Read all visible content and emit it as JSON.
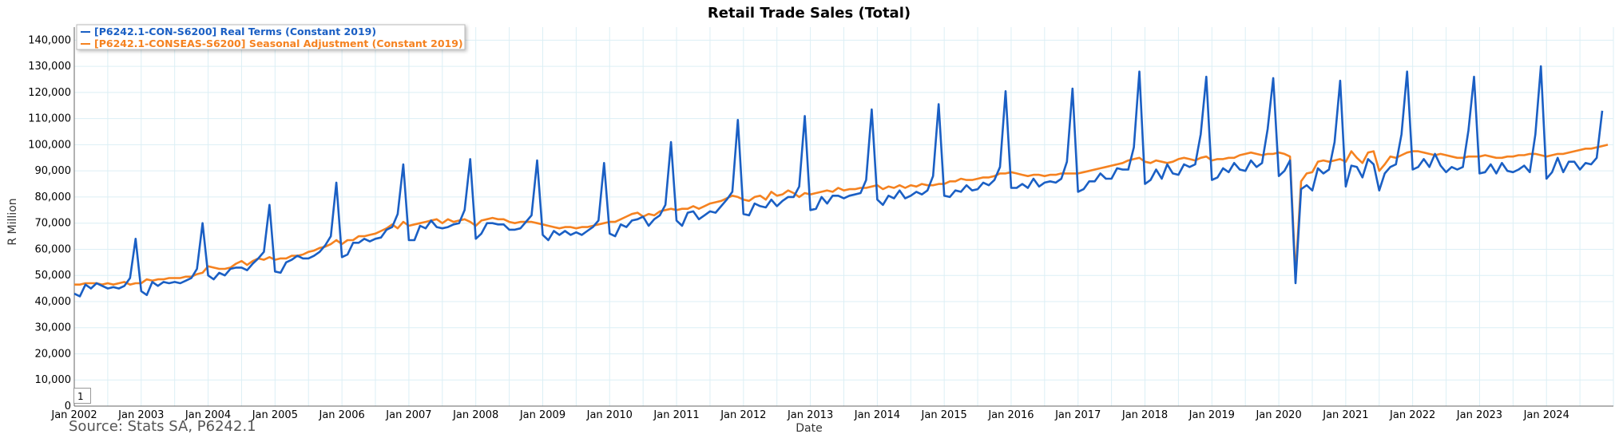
{
  "colors": {
    "series1": "#1a5fc4",
    "series2": "#f58220",
    "grid": "#dceff5"
  },
  "source_text": "Source: Stats SA, P6242.1",
  "page_input_value": "1",
  "chart_data": {
    "type": "line",
    "title": "Retail Trade Sales (Total)",
    "xlabel": "Date",
    "ylabel": "R Million",
    "ylim": [
      0,
      145000
    ],
    "yticks": [
      0,
      10000,
      20000,
      30000,
      40000,
      50000,
      60000,
      70000,
      80000,
      90000,
      100000,
      110000,
      120000,
      130000,
      140000
    ],
    "ytick_labels": [
      "0",
      "10,000",
      "20,000",
      "30,000",
      "40,000",
      "50,000",
      "60,000",
      "70,000",
      "80,000",
      "90,000",
      "100,000",
      "110,000",
      "120,000",
      "130,000",
      "140,000"
    ],
    "x_start": "2002-01",
    "x_end": "2025-01",
    "xtick_labels": [
      "Jan 2002",
      "Jan 2003",
      "Jan 2004",
      "Jan 2005",
      "Jan 2006",
      "Jan 2007",
      "Jan 2008",
      "Jan 2009",
      "Jan 2010",
      "Jan 2011",
      "Jan 2012",
      "Jan 2013",
      "Jan 2014",
      "Jan 2015",
      "Jan 2016",
      "Jan 2017",
      "Jan 2018",
      "Jan 2019",
      "Jan 2020",
      "Jan 2021",
      "Jan 2022",
      "Jan 2023",
      "Jan 2024"
    ],
    "grid": true,
    "legend_position": "top-left",
    "series": [
      {
        "name": "[P6242.1-CON-S6200] Real Terms (Constant 2019)",
        "color_key": "series1",
        "yearly_peak_dec": [
          64000,
          70000,
          77000,
          85500,
          92500,
          94500,
          94000,
          93000,
          101000,
          109500,
          111000,
          113500,
          115500,
          120500,
          121500,
          128000,
          126000,
          125500,
          124500,
          128000,
          126000,
          130000
        ],
        "values": [
          [
            43000,
            42000,
            46500,
            45000,
            47000,
            46000,
            45000,
            45500,
            45000,
            46000,
            49000,
            64000
          ],
          [
            44000,
            42500,
            47500,
            46000,
            47500,
            47000,
            47500,
            47000,
            48000,
            49000,
            52500,
            70000
          ],
          [
            50000,
            48500,
            51000,
            50000,
            52500,
            53000,
            53000,
            52000,
            54500,
            56500,
            59000,
            77000
          ],
          [
            51500,
            51000,
            55000,
            56000,
            57500,
            56500,
            56500,
            57500,
            59000,
            61500,
            65000,
            85500
          ],
          [
            57000,
            58000,
            62500,
            62500,
            64000,
            63000,
            64000,
            64500,
            67500,
            68500,
            73500,
            92500
          ],
          [
            63500,
            63500,
            69000,
            68000,
            71000,
            68500,
            68000,
            68500,
            69500,
            70000,
            75000,
            94500
          ],
          [
            64000,
            66000,
            70000,
            70000,
            69500,
            69500,
            67500,
            67500,
            68000,
            70500,
            73000,
            94000
          ],
          [
            65500,
            63500,
            67000,
            65500,
            67000,
            65500,
            66500,
            65500,
            67000,
            68500,
            71000,
            93000
          ],
          [
            66000,
            65000,
            69500,
            68500,
            71000,
            71500,
            72500,
            69000,
            71500,
            73000,
            77000,
            101000
          ],
          [
            71000,
            69000,
            74000,
            74500,
            71500,
            73000,
            74500,
            74000,
            76500,
            79000,
            82000,
            109500
          ],
          [
            73500,
            73000,
            77500,
            76500,
            76000,
            79000,
            76500,
            78500,
            80000,
            80000,
            84000,
            111000
          ],
          [
            75000,
            75500,
            80000,
            77500,
            80500,
            80500,
            79500,
            80500,
            81000,
            81500,
            86500,
            113500
          ],
          [
            79000,
            77000,
            80500,
            79500,
            82500,
            79500,
            80500,
            82000,
            81000,
            82500,
            88000,
            115500
          ],
          [
            80500,
            80000,
            82500,
            82000,
            84500,
            82500,
            83000,
            85500,
            84500,
            86500,
            91500,
            120500
          ],
          [
            83500,
            83500,
            85000,
            83500,
            87000,
            84000,
            85500,
            86000,
            85500,
            87000,
            93500,
            121500
          ],
          [
            82000,
            83000,
            86000,
            86000,
            89000,
            87000,
            87000,
            91000,
            90500,
            90500,
            99000,
            128000
          ],
          [
            85000,
            86500,
            90500,
            87000,
            92500,
            89000,
            88500,
            92500,
            91500,
            92500,
            104000,
            126000
          ],
          [
            86500,
            87500,
            91000,
            89500,
            93000,
            90500,
            90000,
            94000,
            91500,
            93000,
            106000,
            125500
          ],
          [
            88000,
            90000,
            94000,
            47000,
            83000,
            84500,
            82500,
            91000,
            89000,
            90500,
            101000,
            124500
          ],
          [
            84000,
            92000,
            91500,
            87500,
            94500,
            92500,
            82500,
            89000,
            91500,
            92500,
            104000,
            128000
          ],
          [
            90500,
            91500,
            94500,
            91500,
            96500,
            92000,
            89500,
            91500,
            90500,
            91500,
            105500,
            126000
          ],
          [
            89000,
            89500,
            92500,
            89000,
            93000,
            90000,
            89500,
            90500,
            92000,
            89500,
            104000,
            130000
          ],
          [
            87000,
            89500,
            95000,
            89500,
            93500,
            93500,
            90500,
            93000,
            92500,
            95000,
            113000
          ]
        ]
      },
      {
        "name": "[P6242.1-CONSEAS-S6200] Seasonal Adjustment (Constant 2019)",
        "color_key": "series2",
        "values": [
          [
            46500,
            46500,
            47000,
            47000,
            47000,
            46500,
            47000,
            46500,
            47000,
            47500,
            46500,
            47000
          ],
          [
            47000,
            48500,
            48000,
            48500,
            48500,
            49000,
            49000,
            49000,
            49500,
            49500,
            50500,
            51000
          ],
          [
            53500,
            53000,
            52500,
            52500,
            53000,
            54500,
            55500,
            54000,
            55500,
            56500,
            56000,
            57000
          ],
          [
            56000,
            56500,
            56500,
            57500,
            57500,
            58000,
            59000,
            59500,
            60500,
            61000,
            62000,
            63500
          ],
          [
            62000,
            63500,
            63500,
            65000,
            65000,
            65500,
            66000,
            67000,
            68000,
            69500,
            68000,
            70500
          ],
          [
            69000,
            69500,
            70000,
            70500,
            71000,
            71500,
            70000,
            71500,
            70500,
            71000,
            71500,
            70500
          ],
          [
            69000,
            71000,
            71500,
            72000,
            71500,
            71500,
            70500,
            70000,
            70500,
            70500,
            70500,
            70000
          ],
          [
            69500,
            69000,
            68500,
            68000,
            68500,
            68500,
            68000,
            68500,
            68500,
            69000,
            69500,
            70000
          ],
          [
            70500,
            70500,
            71500,
            72500,
            73500,
            74000,
            72500,
            73500,
            73000,
            74500,
            75000,
            75500
          ],
          [
            75000,
            75500,
            75500,
            76500,
            75500,
            76500,
            77500,
            78000,
            78500,
            79500,
            80500,
            80000
          ],
          [
            79000,
            78500,
            80000,
            80500,
            79000,
            82000,
            80500,
            81000,
            82500,
            81500,
            80000,
            81500
          ],
          [
            81000,
            81500,
            82000,
            82500,
            82000,
            83500,
            82500,
            83000,
            83000,
            83500,
            83500,
            84000
          ],
          [
            84500,
            83000,
            84000,
            83500,
            84500,
            83500,
            84500,
            84000,
            85000,
            84500,
            84500,
            85000
          ],
          [
            85000,
            86000,
            86000,
            87000,
            86500,
            86500,
            87000,
            87500,
            87500,
            88000,
            89000,
            89000
          ],
          [
            89500,
            89000,
            88500,
            88000,
            88500,
            88500,
            88000,
            88500,
            88500,
            89000,
            89000,
            89000
          ],
          [
            89000,
            89500,
            90000,
            90500,
            91000,
            91500,
            92000,
            92500,
            93000,
            94000,
            94500,
            95000
          ],
          [
            93500,
            93000,
            94000,
            93500,
            93000,
            93500,
            94500,
            95000,
            94500,
            94000,
            95000,
            95500
          ],
          [
            94000,
            94500,
            94500,
            95000,
            95000,
            96000,
            96500,
            97000,
            96500,
            96000,
            96500,
            96500
          ],
          [
            97000,
            96500,
            95500,
            50000,
            86000,
            89000,
            89500,
            93500,
            94000,
            93500,
            94000,
            94500
          ],
          [
            93500,
            97500,
            95000,
            93000,
            97000,
            97500,
            90000,
            92500,
            95500,
            95000,
            96000,
            97000
          ],
          [
            97500,
            97500,
            97000,
            96500,
            96000,
            96500,
            96000,
            95500,
            95000,
            95000,
            95500,
            95500
          ],
          [
            95500,
            96000,
            95500,
            95000,
            95000,
            95500,
            95500,
            96000,
            96000,
            96500,
            96500,
            96000
          ],
          [
            95500,
            96000,
            96500,
            96500,
            97000,
            97500,
            98000,
            98500,
            98500,
            99000,
            99500,
            100000
          ]
        ]
      }
    ]
  }
}
